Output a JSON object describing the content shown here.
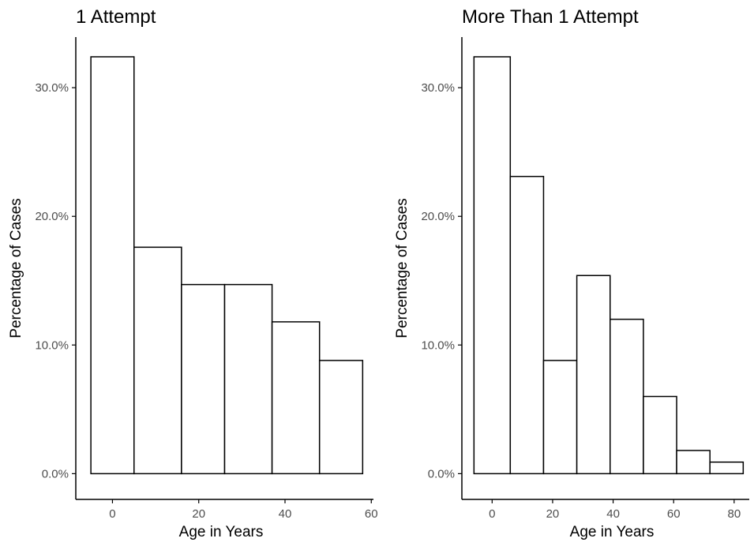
{
  "chart_data": [
    {
      "type": "bar",
      "title": "1 Attempt",
      "xlabel": "Age in Years",
      "ylabel": "Percentage of Cases",
      "xlim": [
        -8.5,
        60.5
      ],
      "ylim": [
        -2,
        32.4
      ],
      "x_ticks": [
        0,
        20,
        40,
        60
      ],
      "y_ticks": [
        0,
        10,
        20,
        30
      ],
      "y_tick_labels": [
        "0.0%",
        "10.0%",
        "20.0%",
        "30.0%"
      ],
      "bins": [
        {
          "x0": -5,
          "x1": 5,
          "value": 32.4
        },
        {
          "x0": 5,
          "x1": 16,
          "value": 17.6
        },
        {
          "x0": 16,
          "x1": 26,
          "value": 14.7
        },
        {
          "x0": 26,
          "x1": 37,
          "value": 14.7
        },
        {
          "x0": 37,
          "x1": 48,
          "value": 11.8
        },
        {
          "x0": 48,
          "x1": 58,
          "value": 8.8
        }
      ],
      "grid": false,
      "colors": {
        "fill": "#ffffff",
        "stroke": "#000000",
        "axis": "#000000",
        "tick_text": "#4d4d4d"
      }
    },
    {
      "type": "bar",
      "title": "More Than 1 Attempt",
      "xlabel": "Age in Years",
      "ylabel": "Percentage of Cases",
      "xlim": [
        -10,
        85
      ],
      "ylim": [
        -2,
        32.4
      ],
      "x_ticks": [
        0,
        20,
        40,
        60,
        80
      ],
      "y_ticks": [
        0,
        10,
        20,
        30
      ],
      "y_tick_labels": [
        "0.0%",
        "10.0%",
        "20.0%",
        "30.0%"
      ],
      "bins": [
        {
          "x0": -6,
          "x1": 6,
          "value": 32.4
        },
        {
          "x0": 6,
          "x1": 17,
          "value": 23.1
        },
        {
          "x0": 17,
          "x1": 28,
          "value": 8.8
        },
        {
          "x0": 28,
          "x1": 39,
          "value": 15.4
        },
        {
          "x0": 39,
          "x1": 50,
          "value": 12.0
        },
        {
          "x0": 50,
          "x1": 61,
          "value": 6.0
        },
        {
          "x0": 61,
          "x1": 72,
          "value": 1.8
        },
        {
          "x0": 72,
          "x1": 83,
          "value": 0.9
        }
      ],
      "grid": false,
      "colors": {
        "fill": "#ffffff",
        "stroke": "#000000",
        "axis": "#000000",
        "tick_text": "#4d4d4d"
      }
    }
  ]
}
